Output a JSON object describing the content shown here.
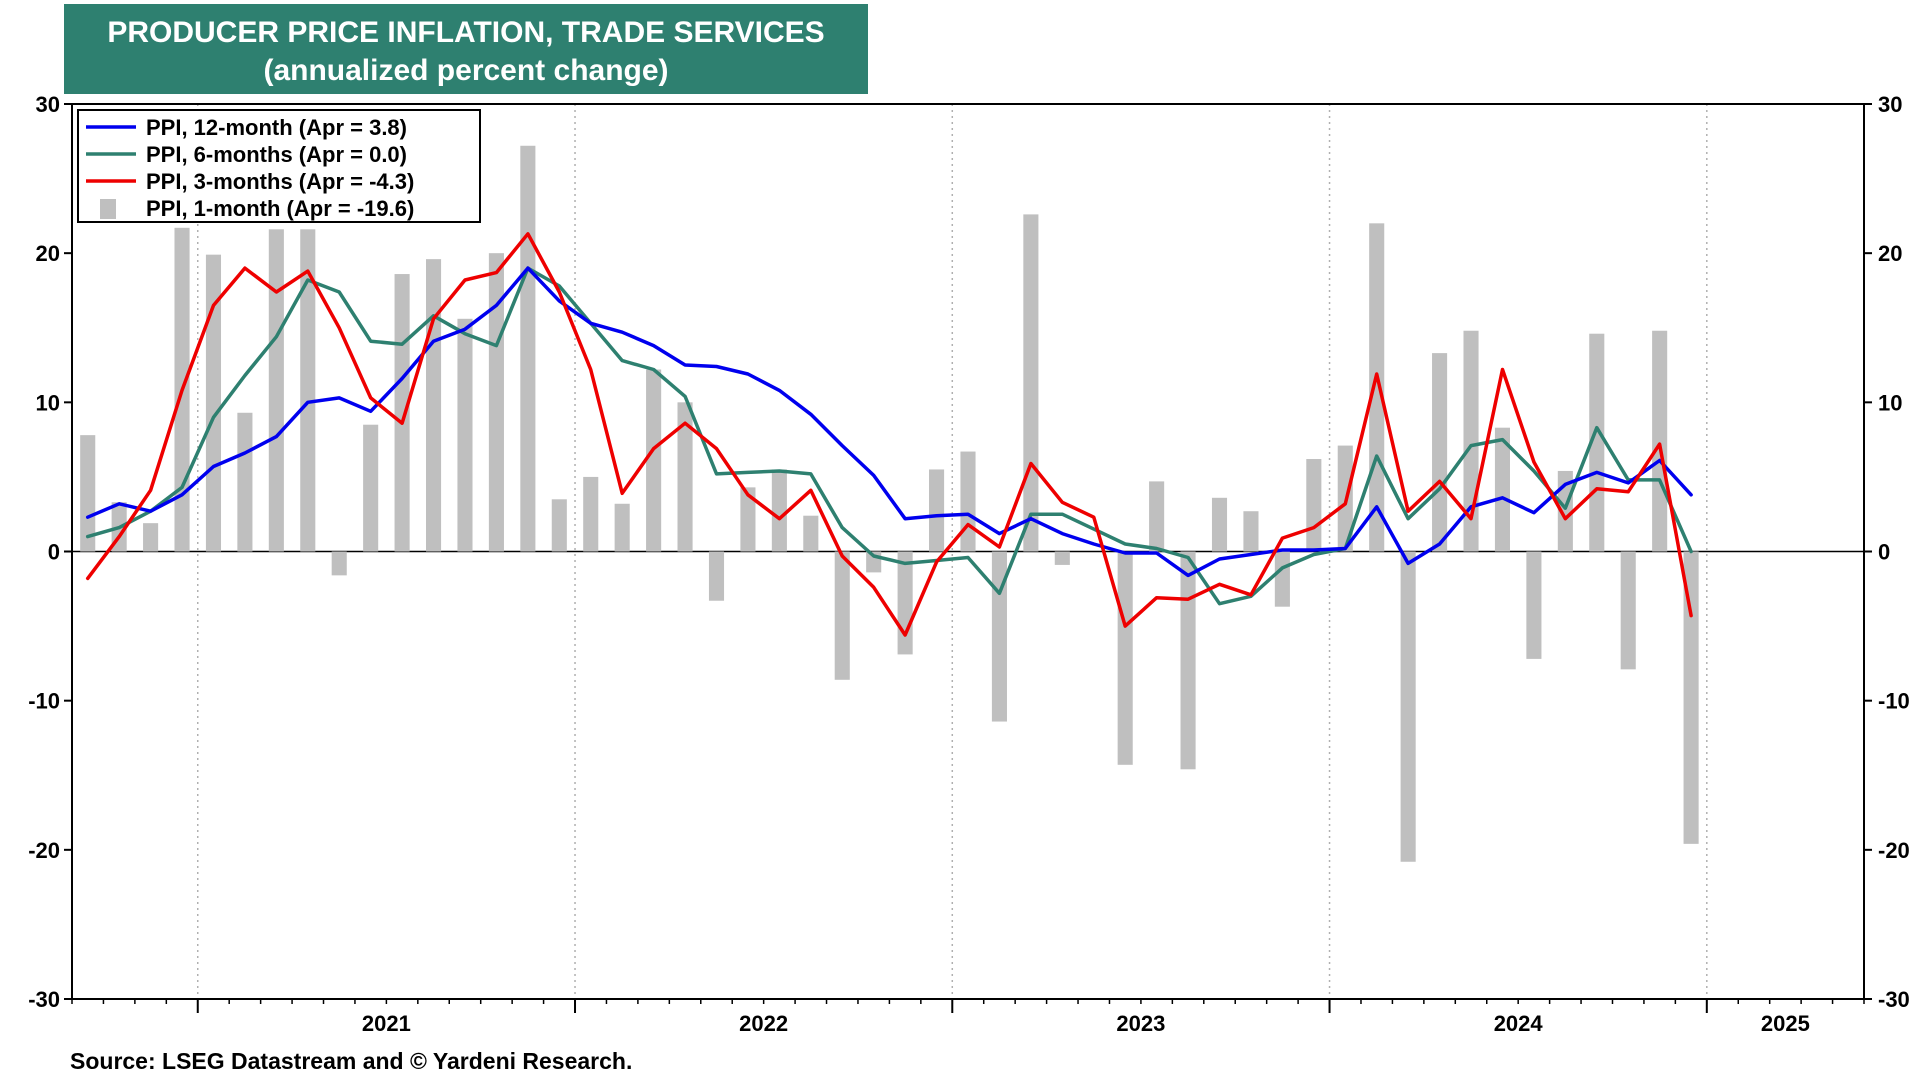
{
  "chart_data": {
    "type": "line",
    "title": "PRODUCER PRICE INFLATION, TRADE SERVICES",
    "subtitle": "(annualized percent change)",
    "source": "Source: LSEG Datastream and © Yardeni Research.",
    "ylim": [
      -30,
      30
    ],
    "yticks": [
      "30",
      "20",
      "10",
      "0",
      "-10",
      "-20",
      "-30"
    ],
    "ytick_values": [
      30,
      20,
      10,
      0,
      -10,
      -20,
      -30
    ],
    "year_labels": [
      "2021",
      "2022",
      "2023",
      "2024",
      "2025"
    ],
    "x_start": "2020-09",
    "months": 57,
    "grid": "dotted-vertical",
    "legend_position": "top-left",
    "series": [
      {
        "name": "PPI, 12-month (Apr = 3.8)",
        "type": "line",
        "color": "#0000ee",
        "values": [
          2.3,
          3.2,
          2.7,
          3.8,
          5.7,
          6.6,
          7.7,
          10.0,
          10.3,
          9.4,
          11.6,
          14.1,
          14.9,
          16.5,
          19.0,
          16.8,
          15.3,
          14.7,
          13.8,
          12.5,
          12.4,
          11.9,
          10.8,
          9.2,
          7.1,
          5.1,
          2.2,
          2.4,
          2.5,
          1.2,
          2.2,
          1.2,
          0.5,
          -0.1,
          -0.1,
          -1.6,
          -0.5,
          -0.2,
          0.1,
          0.1,
          0.2,
          3.0,
          -0.8,
          0.5,
          3.0,
          3.6,
          2.6,
          4.5,
          5.3,
          4.6,
          6.1,
          3.8
        ]
      },
      {
        "name": "PPI, 6-months (Apr = 0.0)",
        "type": "line",
        "color": "#2e8070",
        "values": [
          1.0,
          1.6,
          2.7,
          4.3,
          9.0,
          11.8,
          14.4,
          18.2,
          17.4,
          14.1,
          13.9,
          15.8,
          14.6,
          13.8,
          19.0,
          17.8,
          15.3,
          12.8,
          12.2,
          10.4,
          5.2,
          5.3,
          5.4,
          5.2,
          1.6,
          -0.3,
          -0.8,
          -0.6,
          -0.4,
          -2.8,
          2.5,
          2.5,
          1.5,
          0.5,
          0.2,
          -0.4,
          -3.5,
          -3.0,
          -1.1,
          -0.2,
          0.2,
          6.4,
          2.2,
          4.2,
          7.1,
          7.5,
          5.4,
          2.9,
          8.3,
          4.8,
          4.8,
          0.0
        ]
      },
      {
        "name": "PPI, 3-months (Apr = -4.3)",
        "type": "line",
        "color": "#ee0000",
        "values": [
          -1.8,
          1.0,
          4.1,
          10.8,
          16.5,
          19.0,
          17.4,
          18.8,
          15.0,
          10.3,
          8.6,
          15.6,
          18.2,
          18.7,
          21.3,
          17.4,
          12.2,
          3.9,
          6.9,
          8.6,
          6.9,
          3.8,
          2.2,
          4.1,
          -0.3,
          -2.4,
          -5.6,
          -0.7,
          1.8,
          0.3,
          5.9,
          3.3,
          2.3,
          -5.0,
          -3.1,
          -3.2,
          -2.2,
          -2.9,
          0.9,
          1.6,
          3.2,
          11.9,
          2.7,
          4.7,
          2.2,
          12.2,
          6.0,
          2.2,
          4.2,
          4.0,
          7.2,
          -4.3
        ]
      },
      {
        "name": "PPI, 1-month (Apr = -19.6)",
        "type": "bar",
        "color": "#bfbfbf",
        "values": [
          7.8,
          3.3,
          1.9,
          21.7,
          19.9,
          9.3,
          21.6,
          21.6,
          -1.6,
          8.5,
          18.6,
          19.6,
          15.6,
          20.0,
          27.2,
          3.5,
          5.0,
          3.2,
          12.2,
          10.0,
          -3.3,
          4.3,
          5.5,
          2.4,
          -8.6,
          -1.4,
          -6.9,
          5.5,
          6.7,
          -11.4,
          22.6,
          -0.9,
          0.0,
          -14.3,
          4.7,
          -14.6,
          3.6,
          2.7,
          -3.7,
          6.2,
          7.1,
          22.0,
          -20.8,
          13.3,
          14.8,
          8.3,
          -7.2,
          5.4,
          14.6,
          -7.9,
          14.8,
          -19.6
        ]
      }
    ]
  }
}
